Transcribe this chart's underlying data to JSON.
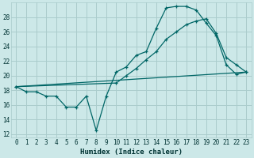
{
  "title": "",
  "xlabel": "Humidex (Indice chaleur)",
  "bg_color": "#cce8e8",
  "grid_color": "#aacccc",
  "line_color": "#006666",
  "xlim": [
    -0.5,
    23.5
  ],
  "ylim": [
    11.5,
    30
  ],
  "yticks": [
    12,
    14,
    16,
    18,
    20,
    22,
    24,
    26,
    28
  ],
  "xticks": [
    0,
    1,
    2,
    3,
    4,
    5,
    6,
    7,
    8,
    9,
    10,
    11,
    12,
    13,
    14,
    15,
    16,
    17,
    18,
    19,
    20,
    21,
    22,
    23
  ],
  "curve1_x": [
    0,
    1,
    2,
    3,
    4,
    5,
    6,
    7,
    8,
    9,
    10,
    11,
    12,
    13,
    14,
    15,
    16,
    17,
    18,
    19,
    20,
    21,
    22,
    23
  ],
  "curve1_y": [
    18.5,
    17.8,
    17.8,
    17.2,
    17.2,
    15.7,
    15.7,
    17.2,
    12.5,
    17.2,
    20.5,
    21.2,
    22.8,
    23.3,
    26.5,
    29.3,
    29.5,
    29.5,
    29.0,
    27.2,
    25.5,
    21.5,
    20.2,
    20.5
  ],
  "curve2_x": [
    0,
    10,
    11,
    12,
    13,
    14,
    15,
    16,
    17,
    18,
    19,
    20,
    21,
    22,
    23
  ],
  "curve2_y": [
    18.5,
    19.0,
    20.0,
    21.0,
    22.2,
    23.3,
    25.0,
    26.0,
    27.0,
    27.5,
    27.8,
    25.8,
    22.5,
    21.5,
    20.5
  ],
  "curve3_x": [
    0,
    23
  ],
  "curve3_y": [
    18.5,
    20.5
  ]
}
